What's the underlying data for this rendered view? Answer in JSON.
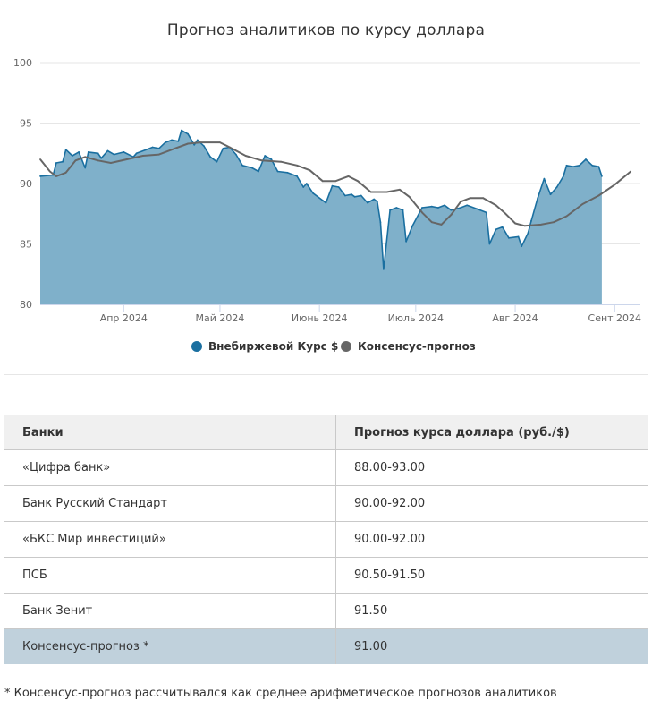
{
  "chart_data": {
    "type": "area",
    "title": "Прогноз аналитиков по курсу доллара",
    "xlabel": "",
    "ylabel": "",
    "ylim": [
      80,
      100
    ],
    "yticks": [
      80,
      85,
      90,
      95,
      100
    ],
    "x_range": [
      "2024-03-06",
      "2024-09-09"
    ],
    "xticks": [
      {
        "date": "2024-04-01",
        "label": "Апр 2024"
      },
      {
        "date": "2024-05-01",
        "label": "Май 2024"
      },
      {
        "date": "2024-06-01",
        "label": "Июнь 2024"
      },
      {
        "date": "2024-07-01",
        "label": "Июль 2024"
      },
      {
        "date": "2024-08-01",
        "label": "Авг 2024"
      },
      {
        "date": "2024-09-01",
        "label": "Сент 2024"
      }
    ],
    "grid": true,
    "legend_position": "bottom",
    "series": [
      {
        "name": "Внебиржевой Курс $",
        "type": "area",
        "color": "#1a6fa0",
        "fill": "#7fb0ca",
        "points": [
          [
            "2024-03-06",
            90.6
          ],
          [
            "2024-03-10",
            90.7
          ],
          [
            "2024-03-11",
            91.7
          ],
          [
            "2024-03-13",
            91.8
          ],
          [
            "2024-03-14",
            92.8
          ],
          [
            "2024-03-16",
            92.3
          ],
          [
            "2024-03-18",
            92.6
          ],
          [
            "2024-03-20",
            91.3
          ],
          [
            "2024-03-21",
            92.6
          ],
          [
            "2024-03-24",
            92.5
          ],
          [
            "2024-03-25",
            92.1
          ],
          [
            "2024-03-27",
            92.7
          ],
          [
            "2024-03-29",
            92.4
          ],
          [
            "2024-04-01",
            92.6
          ],
          [
            "2024-04-04",
            92.2
          ],
          [
            "2024-04-05",
            92.5
          ],
          [
            "2024-04-08",
            92.8
          ],
          [
            "2024-04-10",
            93.0
          ],
          [
            "2024-04-12",
            92.9
          ],
          [
            "2024-04-14",
            93.4
          ],
          [
            "2024-04-16",
            93.6
          ],
          [
            "2024-04-18",
            93.5
          ],
          [
            "2024-04-19",
            94.4
          ],
          [
            "2024-04-21",
            94.1
          ],
          [
            "2024-04-23",
            93.2
          ],
          [
            "2024-04-24",
            93.6
          ],
          [
            "2024-04-26",
            93.1
          ],
          [
            "2024-04-28",
            92.2
          ],
          [
            "2024-04-30",
            91.8
          ],
          [
            "2024-05-02",
            92.9
          ],
          [
            "2024-05-04",
            93.0
          ],
          [
            "2024-05-06",
            92.4
          ],
          [
            "2024-05-08",
            91.5
          ],
          [
            "2024-05-11",
            91.3
          ],
          [
            "2024-05-13",
            91.0
          ],
          [
            "2024-05-15",
            92.3
          ],
          [
            "2024-05-17",
            92.0
          ],
          [
            "2024-05-19",
            91.0
          ],
          [
            "2024-05-22",
            90.9
          ],
          [
            "2024-05-25",
            90.6
          ],
          [
            "2024-05-27",
            89.7
          ],
          [
            "2024-05-28",
            90.0
          ],
          [
            "2024-05-30",
            89.2
          ],
          [
            "2024-06-02",
            88.6
          ],
          [
            "2024-06-03",
            88.4
          ],
          [
            "2024-06-05",
            89.8
          ],
          [
            "2024-06-07",
            89.7
          ],
          [
            "2024-06-09",
            89.0
          ],
          [
            "2024-06-11",
            89.1
          ],
          [
            "2024-06-12",
            88.9
          ],
          [
            "2024-06-14",
            89.0
          ],
          [
            "2024-06-16",
            88.4
          ],
          [
            "2024-06-18",
            88.7
          ],
          [
            "2024-06-19",
            88.5
          ],
          [
            "2024-06-20",
            86.8
          ],
          [
            "2024-06-21",
            82.9
          ],
          [
            "2024-06-23",
            87.8
          ],
          [
            "2024-06-25",
            88.0
          ],
          [
            "2024-06-27",
            87.8
          ],
          [
            "2024-06-28",
            85.2
          ],
          [
            "2024-06-30",
            86.5
          ],
          [
            "2024-07-03",
            88.0
          ],
          [
            "2024-07-06",
            88.1
          ],
          [
            "2024-07-08",
            88.0
          ],
          [
            "2024-07-10",
            88.2
          ],
          [
            "2024-07-12",
            87.8
          ],
          [
            "2024-07-15",
            88.0
          ],
          [
            "2024-07-17",
            88.2
          ],
          [
            "2024-07-20",
            87.9
          ],
          [
            "2024-07-23",
            87.6
          ],
          [
            "2024-07-24",
            85.0
          ],
          [
            "2024-07-26",
            86.2
          ],
          [
            "2024-07-28",
            86.4
          ],
          [
            "2024-07-30",
            85.5
          ],
          [
            "2024-08-02",
            85.6
          ],
          [
            "2024-08-03",
            84.8
          ],
          [
            "2024-08-05",
            85.9
          ],
          [
            "2024-08-06",
            86.9
          ],
          [
            "2024-08-08",
            88.8
          ],
          [
            "2024-08-10",
            90.4
          ],
          [
            "2024-08-12",
            89.1
          ],
          [
            "2024-08-14",
            89.7
          ],
          [
            "2024-08-16",
            90.6
          ],
          [
            "2024-08-17",
            91.5
          ],
          [
            "2024-08-19",
            91.4
          ],
          [
            "2024-08-21",
            91.5
          ],
          [
            "2024-08-23",
            92.0
          ],
          [
            "2024-08-25",
            91.5
          ],
          [
            "2024-08-27",
            91.4
          ],
          [
            "2024-08-28",
            90.6
          ]
        ]
      },
      {
        "name": "Консенсус-прогноз",
        "type": "line",
        "color": "#666666",
        "points": [
          [
            "2024-03-06",
            92.0
          ],
          [
            "2024-03-09",
            91.0
          ],
          [
            "2024-03-11",
            90.6
          ],
          [
            "2024-03-14",
            90.9
          ],
          [
            "2024-03-17",
            91.9
          ],
          [
            "2024-03-20",
            92.2
          ],
          [
            "2024-03-24",
            91.9
          ],
          [
            "2024-03-28",
            91.7
          ],
          [
            "2024-04-02",
            92.0
          ],
          [
            "2024-04-07",
            92.3
          ],
          [
            "2024-04-12",
            92.4
          ],
          [
            "2024-04-17",
            92.9
          ],
          [
            "2024-04-21",
            93.3
          ],
          [
            "2024-04-25",
            93.4
          ],
          [
            "2024-05-01",
            93.4
          ],
          [
            "2024-05-04",
            93.0
          ],
          [
            "2024-05-09",
            92.3
          ],
          [
            "2024-05-14",
            91.9
          ],
          [
            "2024-05-20",
            91.8
          ],
          [
            "2024-05-25",
            91.5
          ],
          [
            "2024-05-29",
            91.1
          ],
          [
            "2024-06-02",
            90.2
          ],
          [
            "2024-06-06",
            90.2
          ],
          [
            "2024-06-10",
            90.6
          ],
          [
            "2024-06-13",
            90.2
          ],
          [
            "2024-06-17",
            89.3
          ],
          [
            "2024-06-22",
            89.3
          ],
          [
            "2024-06-26",
            89.5
          ],
          [
            "2024-06-29",
            88.9
          ],
          [
            "2024-07-03",
            87.6
          ],
          [
            "2024-07-06",
            86.8
          ],
          [
            "2024-07-09",
            86.6
          ],
          [
            "2024-07-12",
            87.4
          ],
          [
            "2024-07-15",
            88.5
          ],
          [
            "2024-07-18",
            88.8
          ],
          [
            "2024-07-22",
            88.8
          ],
          [
            "2024-07-26",
            88.2
          ],
          [
            "2024-07-29",
            87.5
          ],
          [
            "2024-08-01",
            86.7
          ],
          [
            "2024-08-04",
            86.5
          ],
          [
            "2024-08-09",
            86.6
          ],
          [
            "2024-08-13",
            86.8
          ],
          [
            "2024-08-17",
            87.3
          ],
          [
            "2024-08-22",
            88.3
          ],
          [
            "2024-08-27",
            89.0
          ],
          [
            "2024-09-01",
            89.9
          ],
          [
            "2024-09-06",
            91.0
          ]
        ]
      }
    ]
  },
  "table": {
    "headers": [
      "Банки",
      "Прогноз курса доллара (руб./$)"
    ],
    "rows": [
      [
        "«Цифра банк»",
        "88.00-93.00"
      ],
      [
        "Банк Русский Стандарт",
        "90.00-92.00"
      ],
      [
        "«БКС Мир инвестиций»",
        "90.00-92.00"
      ],
      [
        "ПСБ",
        "90.50-91.50"
      ],
      [
        "Банк Зенит",
        "91.50"
      ],
      [
        "Консенсус-прогноз *",
        "91.00"
      ]
    ]
  },
  "footnote": "* Консенсус-прогноз рассчитывался как среднее арифметическое прогнозов аналитиков"
}
